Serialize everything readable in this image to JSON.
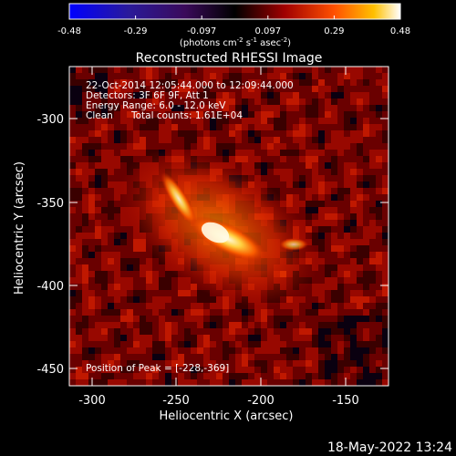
{
  "title": "Reconstructed RHESSI Image",
  "colorbar": {
    "ticks": [
      "-0.48",
      "-0.29",
      "-0.097",
      "0.097",
      "0.29",
      "0.48"
    ],
    "unit_prefix": "(photons cm",
    "unit_exp1": "-2",
    "unit_mid": " s",
    "unit_exp2": "-1",
    "unit_mid2": " asec",
    "unit_exp3": "-2",
    "unit_suffix": ")"
  },
  "info": {
    "line1": "22-Oct-2014 12:05:44.000 to 12:09:44.000",
    "line2": "Detectors: 3F 6F 9F, Att 1",
    "line3": "Energy Range: 6.0 - 12.0 keV",
    "line4_a": "Clean",
    "line4_b": "Total counts: 1.61E+04",
    "peak": "Position of Peak = [-228,-369]"
  },
  "axes": {
    "xlabel": "Heliocentric X (arcsec)",
    "ylabel": "Heliocentric Y (arcsec)",
    "xticks": [
      "-300",
      "-250",
      "-200",
      "-150"
    ],
    "yticks": [
      "-300",
      "-350",
      "-400",
      "-450"
    ]
  },
  "timestamp": "18-May-2022 13:24",
  "colors": {
    "background": "#000000",
    "text": "#ffffff"
  }
}
